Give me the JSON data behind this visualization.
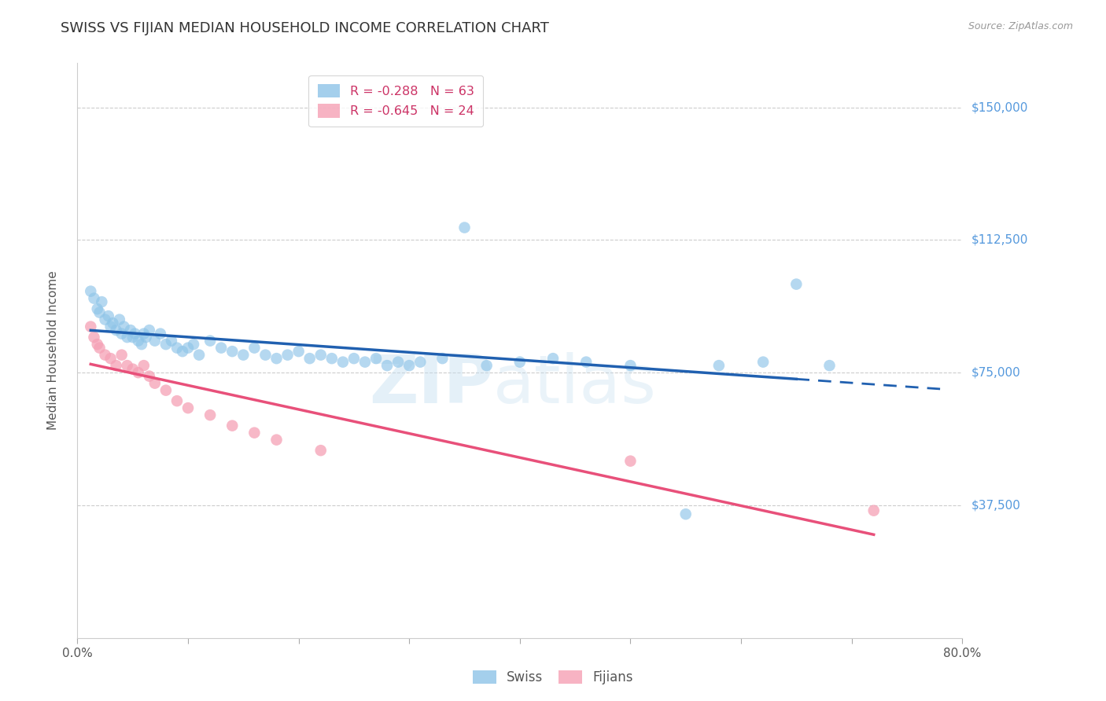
{
  "title": "SWISS VS FIJIAN MEDIAN HOUSEHOLD INCOME CORRELATION CHART",
  "source": "Source: ZipAtlas.com",
  "ylabel": "Median Household Income",
  "yticks": [
    0,
    37500,
    75000,
    112500,
    150000
  ],
  "ytick_labels": [
    "",
    "$37,500",
    "$75,000",
    "$112,500",
    "$150,000"
  ],
  "xlim": [
    0.0,
    80.0
  ],
  "ylim": [
    10000,
    162500
  ],
  "watermark_line1": "ZIP",
  "watermark_line2": "atlas",
  "legend_swiss_r": "R = -0.288",
  "legend_swiss_n": "N = 63",
  "legend_fijian_r": "R = -0.645",
  "legend_fijian_n": "N = 24",
  "swiss_color": "#8ec4e8",
  "fijian_color": "#f5a0b5",
  "trend_swiss_solid_color": "#2060b0",
  "trend_swiss_dash_color": "#2060b0",
  "trend_fijian_color": "#e8507a",
  "background_color": "#ffffff",
  "swiss_x": [
    1.2,
    1.5,
    1.8,
    2.0,
    2.2,
    2.5,
    2.8,
    3.0,
    3.2,
    3.5,
    3.8,
    4.0,
    4.2,
    4.5,
    4.8,
    5.0,
    5.2,
    5.5,
    5.8,
    6.0,
    6.2,
    6.5,
    7.0,
    7.5,
    8.0,
    8.5,
    9.0,
    9.5,
    10.0,
    10.5,
    11.0,
    12.0,
    13.0,
    14.0,
    15.0,
    16.0,
    17.0,
    18.0,
    19.0,
    20.0,
    21.0,
    22.0,
    23.0,
    24.0,
    25.0,
    26.0,
    27.0,
    28.0,
    29.0,
    30.0,
    31.0,
    33.0,
    35.0,
    37.0,
    40.0,
    43.0,
    46.0,
    50.0,
    55.0,
    58.0,
    62.0,
    65.0,
    68.0
  ],
  "swiss_y": [
    98000,
    96000,
    93000,
    92000,
    95000,
    90000,
    91000,
    88000,
    89000,
    87000,
    90000,
    86000,
    88000,
    85000,
    87000,
    85000,
    86000,
    84000,
    83000,
    86000,
    85000,
    87000,
    84000,
    86000,
    83000,
    84000,
    82000,
    81000,
    82000,
    83000,
    80000,
    84000,
    82000,
    81000,
    80000,
    82000,
    80000,
    79000,
    80000,
    81000,
    79000,
    80000,
    79000,
    78000,
    79000,
    78000,
    79000,
    77000,
    78000,
    77000,
    78000,
    79000,
    116000,
    77000,
    78000,
    79000,
    78000,
    77000,
    35000,
    77000,
    78000,
    100000,
    77000
  ],
  "fijian_x": [
    1.2,
    1.5,
    1.8,
    2.0,
    2.5,
    3.0,
    3.5,
    4.0,
    4.5,
    5.0,
    5.5,
    6.0,
    6.5,
    7.0,
    8.0,
    9.0,
    10.0,
    12.0,
    14.0,
    16.0,
    18.0,
    22.0,
    50.0,
    72.0
  ],
  "fijian_y": [
    88000,
    85000,
    83000,
    82000,
    80000,
    79000,
    77000,
    80000,
    77000,
    76000,
    75000,
    77000,
    74000,
    72000,
    70000,
    67000,
    65000,
    63000,
    60000,
    58000,
    56000,
    53000,
    50000,
    36000
  ],
  "grid_color": "#cccccc",
  "grid_linestyle": "--",
  "title_fontsize": 13,
  "label_fontsize": 11,
  "tick_fontsize": 11,
  "marker_size": 110,
  "swiss_trend_x_solid_end": 65.0,
  "swiss_trend_x_dash_end": 78.0
}
